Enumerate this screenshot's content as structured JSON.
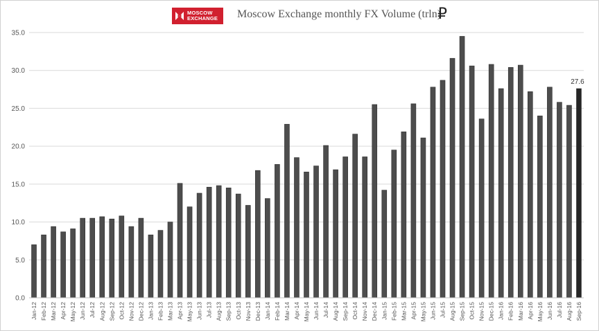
{
  "logo": {
    "line1": "MOSCOW",
    "line2": "EXCHANGE",
    "color": "#d1202f"
  },
  "header": {
    "title": "Moscow Exchange monthly FX Volume (trln)",
    "currency_symbol": "₽"
  },
  "chart_data": {
    "type": "bar",
    "title": "Moscow Exchange monthly FX Volume (trln)",
    "xlabel": "",
    "ylabel": "",
    "ylim": [
      0,
      35
    ],
    "yticks": [
      "0.0",
      "5.0",
      "10.0",
      "15.0",
      "20.0",
      "25.0",
      "30.0",
      "35.0"
    ],
    "grid": "horizontal",
    "bar_color": "#4d4d4d",
    "highlight_color": "#262626",
    "categories": [
      "Jan-12",
      "Feb-12",
      "Mar-12",
      "Apr-12",
      "May-12",
      "Jun-12",
      "Jul-12",
      "Aug-12",
      "Sep-12",
      "Oct-12",
      "Nov-12",
      "Dec-12",
      "Jan-13",
      "Feb-13",
      "Mar-13",
      "Apr-13",
      "May-13",
      "Jun-13",
      "Jul-13",
      "Aug-13",
      "Sep-13",
      "Oct-13",
      "Nov-13",
      "Dec-13",
      "Jan-14",
      "Feb-14",
      "Mar-14",
      "Apr-14",
      "May-14",
      "Jun-14",
      "Jul-14",
      "Aug-14",
      "Sep-14",
      "Oct-14",
      "Nov-14",
      "Dec-14",
      "Jan-15",
      "Feb-15",
      "Mar-15",
      "Apr-15",
      "May-15",
      "Jun-15",
      "Jul-15",
      "Aug-15",
      "Sep-15",
      "Oct-15",
      "Nov-15",
      "Dec-15",
      "Jan-16",
      "Feb-16",
      "Mar-16",
      "Apr-16",
      "May-16",
      "Jun-16",
      "Jul-16",
      "Aug-16",
      "Sep-16"
    ],
    "values": [
      7.0,
      8.3,
      9.4,
      8.7,
      9.1,
      10.5,
      10.5,
      10.7,
      10.4,
      10.8,
      9.4,
      10.5,
      8.3,
      8.9,
      10.0,
      15.1,
      12.0,
      13.8,
      14.6,
      14.8,
      14.5,
      13.7,
      12.2,
      16.8,
      13.1,
      17.6,
      22.9,
      18.5,
      16.6,
      17.4,
      20.1,
      16.9,
      18.6,
      21.6,
      18.6,
      25.5,
      14.2,
      19.5,
      21.9,
      25.6,
      21.1,
      27.8,
      28.7,
      31.6,
      34.5,
      30.6,
      23.6,
      30.8,
      27.6,
      30.4,
      30.7,
      27.2,
      24.0,
      27.8,
      25.8,
      25.4,
      27.6
    ],
    "data_labels": [
      {
        "index": 56,
        "text": "27.6"
      }
    ]
  }
}
